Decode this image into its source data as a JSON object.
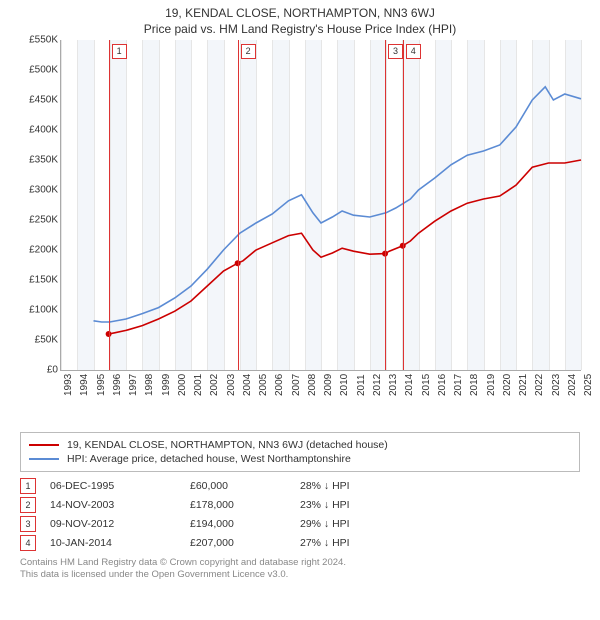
{
  "title": "19, KENDAL CLOSE, NORTHAMPTON, NN3 6WJ",
  "subtitle": "Price paid vs. HM Land Registry's House Price Index (HPI)",
  "chart": {
    "type": "line",
    "background_color": "#ffffff",
    "shade_color": "#f3f6fa",
    "grid_color": "#e6e6e6",
    "axis_color": "#aaaaaa",
    "x_years": [
      1993,
      1994,
      1995,
      1996,
      1997,
      1998,
      1999,
      2000,
      2001,
      2002,
      2003,
      2004,
      2005,
      2006,
      2007,
      2008,
      2009,
      2010,
      2011,
      2012,
      2013,
      2014,
      2015,
      2016,
      2017,
      2018,
      2019,
      2020,
      2021,
      2022,
      2023,
      2024,
      2025
    ],
    "xlim": [
      1993,
      2025
    ],
    "ylim": [
      0,
      550000
    ],
    "ytick_step": 50000,
    "yticks_labels": [
      "£0",
      "£50K",
      "£100K",
      "£150K",
      "£200K",
      "£250K",
      "£300K",
      "£350K",
      "£400K",
      "£450K",
      "£500K",
      "£550K"
    ],
    "label_fontsize": 10,
    "line_width": 1.6,
    "series": {
      "price_paid": {
        "label": "19, KENDAL CLOSE, NORTHAMPTON, NN3 6WJ (detached house)",
        "color": "#cc0000",
        "data": [
          [
            1995.93,
            60000
          ],
          [
            1996.3,
            62000
          ],
          [
            1997,
            66000
          ],
          [
            1998,
            74000
          ],
          [
            1999,
            85000
          ],
          [
            2000,
            98000
          ],
          [
            2001,
            115000
          ],
          [
            2002,
            140000
          ],
          [
            2003,
            165000
          ],
          [
            2003.87,
            178000
          ],
          [
            2004.2,
            182000
          ],
          [
            2005,
            200000
          ],
          [
            2006,
            212000
          ],
          [
            2007,
            224000
          ],
          [
            2007.8,
            228000
          ],
          [
            2008.5,
            200000
          ],
          [
            2009,
            188000
          ],
          [
            2009.7,
            195000
          ],
          [
            2010.3,
            203000
          ],
          [
            2011,
            198000
          ],
          [
            2012,
            193000
          ],
          [
            2012.94,
            194000
          ],
          [
            2013.2,
            198000
          ],
          [
            2014.03,
            207000
          ],
          [
            2014.5,
            215000
          ],
          [
            2015,
            228000
          ],
          [
            2016,
            248000
          ],
          [
            2017,
            265000
          ],
          [
            2018,
            278000
          ],
          [
            2019,
            285000
          ],
          [
            2020,
            290000
          ],
          [
            2021,
            308000
          ],
          [
            2022,
            338000
          ],
          [
            2023,
            345000
          ],
          [
            2024,
            345000
          ],
          [
            2025,
            350000
          ]
        ],
        "markers": [
          {
            "n": "1",
            "x": 1995.93,
            "y": 60000
          },
          {
            "n": "2",
            "x": 2003.87,
            "y": 178000
          },
          {
            "n": "3",
            "x": 2012.94,
            "y": 194000
          },
          {
            "n": "4",
            "x": 2014.03,
            "y": 207000
          }
        ]
      },
      "hpi": {
        "label": "HPI: Average price, detached house, West Northamptonshire",
        "color": "#5b8bd4",
        "data": [
          [
            1995,
            82000
          ],
          [
            1995.5,
            80000
          ],
          [
            1996,
            80000
          ],
          [
            1997,
            85000
          ],
          [
            1998,
            94000
          ],
          [
            1999,
            104000
          ],
          [
            2000,
            120000
          ],
          [
            2001,
            140000
          ],
          [
            2002,
            168000
          ],
          [
            2003,
            200000
          ],
          [
            2004,
            228000
          ],
          [
            2005,
            245000
          ],
          [
            2006,
            260000
          ],
          [
            2007,
            282000
          ],
          [
            2007.8,
            292000
          ],
          [
            2008.5,
            262000
          ],
          [
            2009,
            245000
          ],
          [
            2009.7,
            255000
          ],
          [
            2010.3,
            265000
          ],
          [
            2011,
            258000
          ],
          [
            2012,
            255000
          ],
          [
            2013,
            262000
          ],
          [
            2013.6,
            270000
          ],
          [
            2014.5,
            285000
          ],
          [
            2015,
            300000
          ],
          [
            2016,
            320000
          ],
          [
            2017,
            342000
          ],
          [
            2018,
            358000
          ],
          [
            2019,
            365000
          ],
          [
            2020,
            375000
          ],
          [
            2021,
            405000
          ],
          [
            2022,
            450000
          ],
          [
            2022.8,
            472000
          ],
          [
            2023.3,
            450000
          ],
          [
            2024,
            460000
          ],
          [
            2025,
            452000
          ]
        ]
      }
    },
    "shaded_year_stripes": [
      1994,
      1996,
      1998,
      2000,
      2002,
      2004,
      2006,
      2008,
      2010,
      2012,
      2014,
      2016,
      2018,
      2020,
      2022,
      2024
    ],
    "marker_line_color": "#d33",
    "marker_box_border": "#d33"
  },
  "legend_items": [
    {
      "color": "#cc0000",
      "label": "19, KENDAL CLOSE, NORTHAMPTON, NN3 6WJ (detached house)"
    },
    {
      "color": "#5b8bd4",
      "label": "HPI: Average price, detached house, West Northamptonshire"
    }
  ],
  "sales_table": [
    {
      "n": "1",
      "date": "06-DEC-1995",
      "price": "£60,000",
      "delta": "28% ↓ HPI"
    },
    {
      "n": "2",
      "date": "14-NOV-2003",
      "price": "£178,000",
      "delta": "23% ↓ HPI"
    },
    {
      "n": "3",
      "date": "09-NOV-2012",
      "price": "£194,000",
      "delta": "29% ↓ HPI"
    },
    {
      "n": "4",
      "date": "10-JAN-2014",
      "price": "£207,000",
      "delta": "27% ↓ HPI"
    }
  ],
  "footer_line1": "Contains HM Land Registry data © Crown copyright and database right 2024.",
  "footer_line2": "This data is licensed under the Open Government Licence v3.0."
}
